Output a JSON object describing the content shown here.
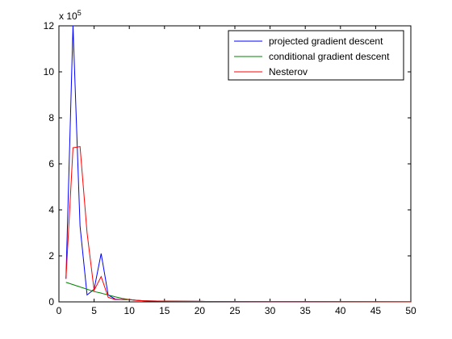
{
  "chart_data": {
    "type": "line",
    "title": "",
    "xlabel": "",
    "ylabel": "",
    "xlim": [
      0,
      50
    ],
    "ylim": [
      0,
      12
    ],
    "x_ticks": [
      0,
      5,
      10,
      15,
      20,
      25,
      30,
      35,
      40,
      45,
      50
    ],
    "y_ticks": [
      0,
      2,
      4,
      6,
      8,
      10,
      12
    ],
    "y_exponent_label": {
      "prefix": "x 10",
      "power": "5"
    },
    "grid": false,
    "legend_position": "top-right",
    "colors": {
      "projected": "#0000ff",
      "conditional": "#008000",
      "nesterov": "#ff0000"
    },
    "series": [
      {
        "name": "projected gradient descent",
        "color": "#0000ff",
        "x": [
          1,
          2,
          3,
          4,
          5,
          6,
          7,
          8,
          9,
          10,
          11,
          12,
          13,
          15,
          20,
          30,
          40,
          50
        ],
        "y": [
          1.0,
          12.0,
          3.3,
          0.3,
          0.55,
          2.1,
          0.3,
          0.12,
          0.1,
          0.1,
          0.07,
          0.05,
          0.04,
          0.03,
          0.02,
          0.01,
          0.01,
          0.005
        ]
      },
      {
        "name": "conditional gradient descent",
        "color": "#008000",
        "x": [
          1,
          2,
          3,
          4,
          5,
          6,
          7,
          8,
          9,
          10,
          11,
          12,
          13,
          15,
          20,
          30,
          40,
          50
        ],
        "y": [
          0.85,
          0.75,
          0.65,
          0.55,
          0.45,
          0.38,
          0.3,
          0.22,
          0.15,
          0.1,
          0.07,
          0.05,
          0.04,
          0.03,
          0.02,
          0.015,
          0.01,
          0.005
        ]
      },
      {
        "name": "Nesterov",
        "color": "#ff0000",
        "x": [
          1,
          2,
          3,
          4,
          5,
          6,
          7,
          8,
          9,
          10,
          11,
          12,
          13,
          15,
          20,
          30,
          40,
          50
        ],
        "y": [
          1.0,
          6.7,
          6.75,
          3.0,
          0.5,
          1.1,
          0.2,
          0.1,
          0.1,
          0.1,
          0.06,
          0.05,
          0.04,
          0.03,
          0.02,
          0.01,
          0.01,
          0.005
        ]
      }
    ]
  }
}
